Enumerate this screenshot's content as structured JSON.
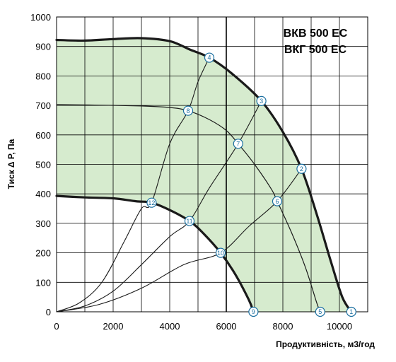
{
  "chart_data": {
    "type": "line",
    "title": "",
    "models": [
      "ВКВ 500 ЕС",
      "ВКГ 500 ЕС"
    ],
    "xlabel": "Продуктивність, м3/год",
    "ylabel": "Тиск Δ P, Па",
    "xlim": [
      0,
      11000
    ],
    "ylim": [
      0,
      1000
    ],
    "x_ticks": [
      0,
      2000,
      4000,
      6000,
      8000,
      10000
    ],
    "y_ticks": [
      0,
      100,
      200,
      300,
      400,
      500,
      600,
      700,
      800,
      900,
      1000
    ],
    "grid": true,
    "colors": {
      "fill": "#d6ebce",
      "line": "#1a1a1a",
      "marker_border": "#1a6fa0",
      "marker_fill": "#ffffff",
      "grid": "#000000"
    },
    "fan_curves": [
      {
        "id": "max",
        "bold": true,
        "points": [
          [
            0,
            922
          ],
          [
            1000,
            920
          ],
          [
            2000,
            925
          ],
          [
            3000,
            928
          ],
          [
            4000,
            918
          ],
          [
            4700,
            890
          ],
          [
            5400,
            862
          ],
          [
            6200,
            808
          ],
          [
            7240,
            715
          ],
          [
            8000,
            610
          ],
          [
            8660,
            485
          ],
          [
            9200,
            330
          ],
          [
            9700,
            170
          ],
          [
            10100,
            50
          ],
          [
            10420,
            0
          ]
        ]
      },
      {
        "id": "mid",
        "bold": false,
        "points": [
          [
            0,
            703
          ],
          [
            1500,
            701
          ],
          [
            3000,
            698
          ],
          [
            4000,
            693
          ],
          [
            4650,
            682
          ],
          [
            5400,
            652
          ],
          [
            6000,
            615
          ],
          [
            6420,
            570
          ],
          [
            7000,
            500
          ],
          [
            7600,
            415
          ],
          [
            7800,
            375
          ],
          [
            8300,
            270
          ],
          [
            8800,
            150
          ],
          [
            9200,
            30
          ],
          [
            9320,
            0
          ]
        ]
      },
      {
        "id": "min",
        "bold": true,
        "points": [
          [
            0,
            393
          ],
          [
            1000,
            388
          ],
          [
            2000,
            385
          ],
          [
            2800,
            375
          ],
          [
            3360,
            370
          ],
          [
            4000,
            345
          ],
          [
            4700,
            308
          ],
          [
            5200,
            265
          ],
          [
            5800,
            200
          ],
          [
            6300,
            130
          ],
          [
            6800,
            40
          ],
          [
            6960,
            0
          ]
        ]
      }
    ],
    "system_curves": [
      {
        "id": "s1",
        "points": [
          [
            0,
            0
          ],
          [
            800,
            30
          ],
          [
            1600,
            100
          ],
          [
            2400,
            240
          ],
          [
            3000,
            350
          ],
          [
            3360,
            370
          ],
          [
            4000,
            570
          ],
          [
            4650,
            682
          ],
          [
            5000,
            780
          ],
          [
            5400,
            862
          ]
        ]
      },
      {
        "id": "s2",
        "points": [
          [
            0,
            0
          ],
          [
            1000,
            20
          ],
          [
            2000,
            70
          ],
          [
            3000,
            160
          ],
          [
            4000,
            255
          ],
          [
            4700,
            308
          ],
          [
            5400,
            420
          ],
          [
            6420,
            570
          ],
          [
            7240,
            715
          ]
        ]
      },
      {
        "id": "s3",
        "points": [
          [
            0,
            0
          ],
          [
            1500,
            25
          ],
          [
            3000,
            80
          ],
          [
            4500,
            160
          ],
          [
            5800,
            200
          ],
          [
            6800,
            290
          ],
          [
            7800,
            375
          ],
          [
            8660,
            485
          ]
        ]
      }
    ],
    "markers": [
      {
        "label": "1",
        "x": 10420,
        "y": 0
      },
      {
        "label": "2",
        "x": 8660,
        "y": 485
      },
      {
        "label": "3",
        "x": 7240,
        "y": 715
      },
      {
        "label": "4",
        "x": 5400,
        "y": 862
      },
      {
        "label": "5",
        "x": 9320,
        "y": 0
      },
      {
        "label": "6",
        "x": 7800,
        "y": 375
      },
      {
        "label": "7",
        "x": 6420,
        "y": 570
      },
      {
        "label": "8",
        "x": 4650,
        "y": 682
      },
      {
        "label": "9",
        "x": 6960,
        "y": 0
      },
      {
        "label": "10",
        "x": 5800,
        "y": 200
      },
      {
        "label": "11",
        "x": 4700,
        "y": 308
      },
      {
        "label": "12",
        "x": 3360,
        "y": 370
      }
    ]
  }
}
